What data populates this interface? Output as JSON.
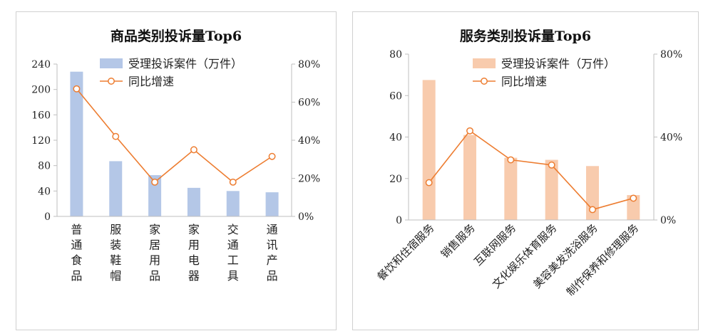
{
  "chart_data": [
    {
      "type": "bar+line",
      "title": "商品类别投诉量Top6",
      "categories": [
        "普通食品",
        "服装鞋帽",
        "家居用品",
        "家用电器",
        "交通工具",
        "通讯产品"
      ],
      "series": [
        {
          "name": "受理投诉案件（万件）",
          "type": "bar",
          "axis": "left",
          "color": "#b4c7e7",
          "values": [
            228,
            87,
            65,
            45,
            40,
            38
          ]
        },
        {
          "name": "同比增速",
          "type": "line",
          "axis": "right",
          "color": "#ed7d31",
          "values": [
            0.67,
            0.42,
            0.18,
            0.35,
            0.18,
            0.315
          ]
        }
      ],
      "y_left": {
        "min": 0,
        "max": 240,
        "ticks": [
          "0",
          "40",
          "80",
          "120",
          "160",
          "200",
          "240"
        ]
      },
      "y_right": {
        "min": 0,
        "max": 0.8,
        "ticks": [
          "0%",
          "20%",
          "40%",
          "60%",
          "80%"
        ]
      },
      "category_label_style": "vertical",
      "grid": false,
      "legend": "top-center"
    },
    {
      "type": "bar+line",
      "title": "服务类别投诉量Top6",
      "categories": [
        "餐饮和住宿服务",
        "销售服务",
        "互联网服务",
        "文化娱乐体育服务",
        "美容美发洗浴服务",
        "制作保养和修理服务"
      ],
      "series": [
        {
          "name": "受理投诉案件（万件）",
          "type": "bar",
          "axis": "left",
          "color": "#f8cbad",
          "values": [
            67.5,
            41,
            30,
            29,
            26,
            12
          ]
        },
        {
          "name": "同比增速",
          "type": "line",
          "axis": "right",
          "color": "#ed7d31",
          "values": [
            0.18,
            0.43,
            0.29,
            0.265,
            0.05,
            0.105
          ]
        }
      ],
      "y_left": {
        "min": 0,
        "max": 80,
        "ticks": [
          "0",
          "20",
          "40",
          "60",
          "80"
        ]
      },
      "y_right": {
        "min": 0,
        "max": 0.8,
        "ticks": [
          "0%",
          "40%",
          "80%"
        ]
      },
      "category_label_style": "rotated",
      "grid": false,
      "legend": "top-center"
    }
  ]
}
